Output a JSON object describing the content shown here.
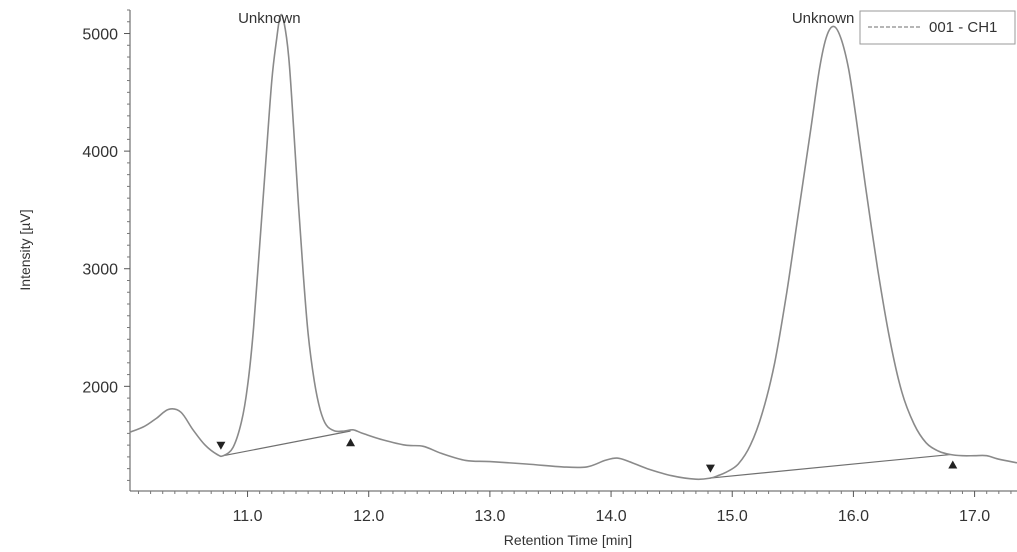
{
  "chart_data": {
    "type": "line",
    "xlabel": "Retention Time [min]",
    "ylabel": "Intensity [µV]",
    "xlim": [
      10.03,
      17.35
    ],
    "ylim": [
      1110,
      5200
    ],
    "x_ticks": [
      "11.0",
      "12.0",
      "13.0",
      "14.0",
      "15.0",
      "16.0",
      "17.0"
    ],
    "y_ticks": [
      "2000",
      "3000",
      "4000",
      "5000"
    ],
    "legend": {
      "label": "001 - CH1",
      "position": "top-right"
    },
    "series": [
      {
        "name": "001 - CH1",
        "points": [
          [
            10.03,
            1610
          ],
          [
            10.15,
            1660
          ],
          [
            10.25,
            1730
          ],
          [
            10.35,
            1805
          ],
          [
            10.45,
            1780
          ],
          [
            10.55,
            1630
          ],
          [
            10.65,
            1500
          ],
          [
            10.75,
            1420
          ],
          [
            10.8,
            1410
          ],
          [
            10.88,
            1480
          ],
          [
            10.95,
            1700
          ],
          [
            11.0,
            2000
          ],
          [
            11.05,
            2500
          ],
          [
            11.1,
            3200
          ],
          [
            11.15,
            3900
          ],
          [
            11.2,
            4600
          ],
          [
            11.24,
            4950
          ],
          [
            11.27,
            5150
          ],
          [
            11.3,
            5100
          ],
          [
            11.34,
            4800
          ],
          [
            11.38,
            4200
          ],
          [
            11.42,
            3550
          ],
          [
            11.46,
            2950
          ],
          [
            11.5,
            2450
          ],
          [
            11.55,
            2050
          ],
          [
            11.6,
            1800
          ],
          [
            11.65,
            1670
          ],
          [
            11.72,
            1620
          ],
          [
            11.8,
            1620
          ],
          [
            11.87,
            1630
          ],
          [
            11.95,
            1600
          ],
          [
            12.1,
            1550
          ],
          [
            12.3,
            1500
          ],
          [
            12.45,
            1490
          ],
          [
            12.6,
            1430
          ],
          [
            12.8,
            1370
          ],
          [
            13.0,
            1360
          ],
          [
            13.3,
            1340
          ],
          [
            13.6,
            1315
          ],
          [
            13.8,
            1315
          ],
          [
            13.95,
            1370
          ],
          [
            14.05,
            1390
          ],
          [
            14.15,
            1360
          ],
          [
            14.3,
            1300
          ],
          [
            14.5,
            1240
          ],
          [
            14.7,
            1210
          ],
          [
            14.82,
            1220
          ],
          [
            14.88,
            1240
          ],
          [
            14.95,
            1270
          ],
          [
            15.05,
            1340
          ],
          [
            15.15,
            1500
          ],
          [
            15.25,
            1780
          ],
          [
            15.35,
            2200
          ],
          [
            15.45,
            2800
          ],
          [
            15.55,
            3500
          ],
          [
            15.65,
            4200
          ],
          [
            15.72,
            4700
          ],
          [
            15.78,
            4980
          ],
          [
            15.84,
            5060
          ],
          [
            15.9,
            4950
          ],
          [
            15.96,
            4700
          ],
          [
            16.02,
            4300
          ],
          [
            16.1,
            3700
          ],
          [
            16.2,
            3000
          ],
          [
            16.3,
            2400
          ],
          [
            16.4,
            1950
          ],
          [
            16.5,
            1680
          ],
          [
            16.6,
            1520
          ],
          [
            16.7,
            1450
          ],
          [
            16.8,
            1420
          ],
          [
            16.9,
            1410
          ],
          [
            17.0,
            1410
          ],
          [
            17.1,
            1410
          ],
          [
            17.2,
            1380
          ],
          [
            17.35,
            1350
          ]
        ]
      }
    ],
    "baselines": [
      {
        "start": [
          10.8,
          1410
        ],
        "end": [
          11.85,
          1620
        ]
      },
      {
        "start": [
          14.82,
          1220
        ],
        "end": [
          16.8,
          1420
        ]
      }
    ],
    "peak_markers": [
      {
        "x": 10.78,
        "y": 1495,
        "direction": "down"
      },
      {
        "x": 11.85,
        "y": 1525,
        "direction": "up"
      },
      {
        "x": 14.82,
        "y": 1300,
        "direction": "down"
      },
      {
        "x": 16.82,
        "y": 1335,
        "direction": "up"
      }
    ],
    "annotations": [
      {
        "text": "Unknown",
        "x": 11.18,
        "y": 5210
      },
      {
        "text": "Unknown",
        "x": 15.75,
        "y": 5210
      }
    ]
  }
}
